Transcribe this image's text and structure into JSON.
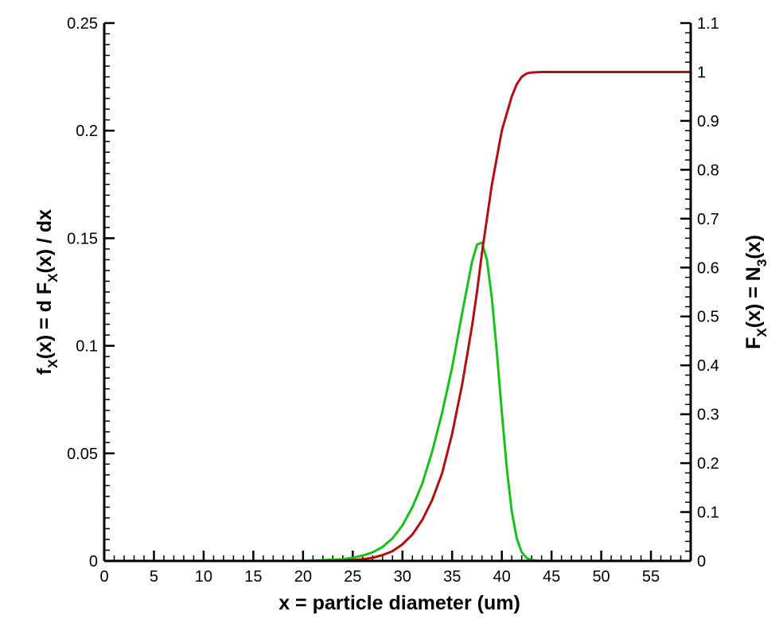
{
  "chart_data": {
    "type": "line",
    "xlabel": {
      "pre": "x = particle diameter (um)"
    },
    "ylabel_left": {
      "p1": "f",
      "s1": "X",
      "p2": "(x) = d F",
      "s2": "X",
      "p3": "(x) / dx"
    },
    "ylabel_right": {
      "p1": "F",
      "s1": "X",
      "p2": "(x) = N",
      "s2": "3",
      "p3": "(x)"
    },
    "xlim": [
      0,
      59
    ],
    "ylim_left": [
      0,
      0.25
    ],
    "ylim_right": [
      0,
      1.1
    ],
    "x_ticks": [
      0,
      5,
      10,
      15,
      20,
      25,
      30,
      35,
      40,
      45,
      50,
      55
    ],
    "x_tick_labels": [
      "0",
      "5",
      "10",
      "15",
      "20",
      "25",
      "30",
      "35",
      "40",
      "45",
      "50",
      "55"
    ],
    "y_left_ticks": [
      0,
      0.05,
      0.1,
      0.15,
      0.2,
      0.25
    ],
    "y_left_tick_labels": [
      "0",
      "0.05",
      "0.1",
      "0.15",
      "0.2",
      "0.25"
    ],
    "y_right_ticks": [
      0,
      0.1,
      0.2,
      0.3,
      0.4,
      0.5,
      0.6,
      0.7,
      0.8,
      0.9,
      1,
      1.1
    ],
    "y_right_tick_labels": [
      "0",
      "0.1",
      "0.2",
      "0.3",
      "0.4",
      "0.5",
      "0.6",
      "0.7",
      "0.8",
      "0.9",
      "1",
      "1.1"
    ],
    "grid": false,
    "series": [
      {
        "axis": "left",
        "color": "#18c018",
        "x": [
          0,
          20,
          24,
          25,
          26,
          27,
          28,
          29,
          30,
          31,
          32,
          33,
          34,
          35,
          36,
          36.5,
          37,
          37.5,
          38,
          38.5,
          39,
          39.5,
          40,
          40.5,
          41,
          41.5,
          42,
          42.5,
          43,
          43.5,
          44,
          59
        ],
        "y": [
          0,
          0,
          0.0008,
          0.0015,
          0.0025,
          0.004,
          0.0065,
          0.0105,
          0.0165,
          0.025,
          0.036,
          0.051,
          0.069,
          0.09,
          0.115,
          0.127,
          0.139,
          0.147,
          0.148,
          0.14,
          0.122,
          0.097,
          0.069,
          0.043,
          0.023,
          0.0105,
          0.004,
          0.0014,
          0.0004,
          0.0001,
          0,
          0
        ]
      },
      {
        "axis": "right",
        "color": "#b01010",
        "x": [
          0,
          22,
          24,
          25,
          26,
          27,
          28,
          29,
          30,
          31,
          32,
          33,
          34,
          35,
          36,
          37,
          37.5,
          38,
          39,
          40,
          41,
          41.5,
          42,
          42.5,
          43,
          44,
          59
        ],
        "y": [
          0,
          0,
          0.0008,
          0.0018,
          0.0035,
          0.0065,
          0.012,
          0.02,
          0.034,
          0.054,
          0.084,
          0.125,
          0.18,
          0.26,
          0.36,
          0.48,
          0.55,
          0.63,
          0.77,
          0.88,
          0.95,
          0.975,
          0.99,
          0.997,
          0.999,
          1.0,
          1.0
        ]
      }
    ]
  }
}
